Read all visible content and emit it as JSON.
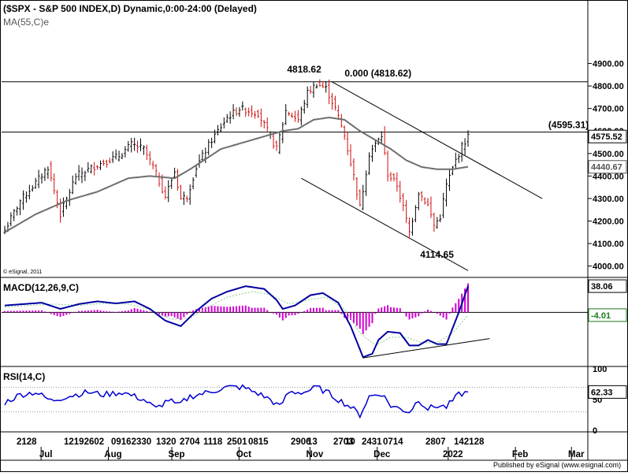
{
  "chart_data": {
    "type": "line",
    "colors": {
      "bull_bar": "#000000",
      "bear_bar": "#d01010",
      "ma": "#6e6e6e",
      "macd_line": "#0000a0",
      "signal_line": "#88cc88",
      "histogram": "#d000d0",
      "rsi": "#0000d0",
      "label_box": "#000000",
      "label_box_red": "#d01010"
    },
    "price_panel": {
      "title": "($SPX - S&P 500 INDEX,D) Dynamic,0:00-24:00 (Delayed)",
      "ma_label": "MA(55,C)e",
      "copyright": "© eSignal, 2011",
      "yticks": [
        4000,
        4100,
        4200,
        4300,
        4400,
        4500,
        4600,
        4700,
        4800,
        4900
      ],
      "ytick_labels": [
        "4000.00",
        "4100.00",
        "4200.00",
        "4300.00",
        "4400.00",
        "4500.00",
        "4600.00",
        "4700.00",
        "4800.00",
        "4900.00"
      ],
      "ylim": [
        3960,
        5000
      ],
      "hlines": [
        4818.62,
        4595.31
      ],
      "close_labels": [
        {
          "value": 4575.52,
          "text": "4575.52",
          "color": "#000000"
        },
        {
          "value": 4440.67,
          "text": "4440.67",
          "color": "#555555"
        }
      ],
      "annotations": [
        {
          "text": "4818.62",
          "x": 103,
          "y": 4818.62
        },
        {
          "text": "0.000 (4818.62)",
          "x": 108,
          "y": 4818.62
        },
        {
          "text": "(4595.31)",
          "x": 176,
          "y": 4595.31
        },
        {
          "text": "4114.65",
          "x": 135,
          "y": 4114.65
        }
      ],
      "channel_lines": [
        {
          "x1": 106,
          "y1": 4818,
          "x2": 174,
          "y2": 4300
        },
        {
          "x1": 96,
          "y1": 4390,
          "x2": 150,
          "y2": 3980
        }
      ],
      "ohlc_anchors": [
        [
          0,
          4160
        ],
        [
          5,
          4290
        ],
        [
          10,
          4370
        ],
        [
          14,
          4440
        ],
        [
          18,
          4230
        ],
        [
          23,
          4400
        ],
        [
          30,
          4450
        ],
        [
          37,
          4490
        ],
        [
          41,
          4540
        ],
        [
          45,
          4520
        ],
        [
          48,
          4440
        ],
        [
          52,
          4310
        ],
        [
          55,
          4420
        ],
        [
          57,
          4300
        ],
        [
          59,
          4310
        ],
        [
          62,
          4440
        ],
        [
          67,
          4560
        ],
        [
          72,
          4660
        ],
        [
          76,
          4700
        ],
        [
          82,
          4680
        ],
        [
          85,
          4600
        ],
        [
          88,
          4520
        ],
        [
          91,
          4690
        ],
        [
          95,
          4650
        ],
        [
          98,
          4770
        ],
        [
          101,
          4810
        ],
        [
          104,
          4790
        ],
        [
          107,
          4700
        ],
        [
          110,
          4580
        ],
        [
          113,
          4400
        ],
        [
          115,
          4260
        ],
        [
          118,
          4500
        ],
        [
          122,
          4580
        ],
        [
          124,
          4410
        ],
        [
          127,
          4360
        ],
        [
          129,
          4260
        ],
        [
          131,
          4150
        ],
        [
          134,
          4330
        ],
        [
          137,
          4270
        ],
        [
          139,
          4180
        ],
        [
          141,
          4220
        ],
        [
          143,
          4360
        ],
        [
          146,
          4470
        ],
        [
          148,
          4530
        ],
        [
          150,
          4576
        ]
      ],
      "ma55_anchors": [
        [
          0,
          4150
        ],
        [
          10,
          4230
        ],
        [
          20,
          4290
        ],
        [
          30,
          4330
        ],
        [
          40,
          4390
        ],
        [
          47,
          4400
        ],
        [
          55,
          4390
        ],
        [
          60,
          4430
        ],
        [
          70,
          4520
        ],
        [
          80,
          4560
        ],
        [
          90,
          4600
        ],
        [
          95,
          4610
        ],
        [
          100,
          4650
        ],
        [
          105,
          4660
        ],
        [
          110,
          4650
        ],
        [
          115,
          4600
        ],
        [
          120,
          4560
        ],
        [
          125,
          4520
        ],
        [
          130,
          4470
        ],
        [
          135,
          4440
        ],
        [
          140,
          4430
        ],
        [
          145,
          4430
        ],
        [
          150,
          4441
        ]
      ]
    },
    "macd_panel": {
      "label": "MACD(12,26,9,C)",
      "ylim": [
        -75,
        45
      ],
      "zero_label": "-4.01",
      "macd_value_label": "38.06",
      "macd_last": 38.06,
      "signal_last": -4.01,
      "macd_anchors": [
        [
          0,
          10
        ],
        [
          6,
          12
        ],
        [
          12,
          14
        ],
        [
          18,
          5
        ],
        [
          24,
          12
        ],
        [
          30,
          16
        ],
        [
          36,
          13
        ],
        [
          42,
          16
        ],
        [
          47,
          5
        ],
        [
          52,
          -12
        ],
        [
          57,
          -20
        ],
        [
          62,
          2
        ],
        [
          67,
          20
        ],
        [
          72,
          30
        ],
        [
          78,
          38
        ],
        [
          84,
          34
        ],
        [
          88,
          18
        ],
        [
          90,
          5
        ],
        [
          94,
          10
        ],
        [
          99,
          25
        ],
        [
          103,
          28
        ],
        [
          108,
          14
        ],
        [
          112,
          -20
        ],
        [
          116,
          -65
        ],
        [
          119,
          -60
        ],
        [
          121,
          -40
        ],
        [
          124,
          -28
        ],
        [
          128,
          -30
        ],
        [
          131,
          -48
        ],
        [
          134,
          -48
        ],
        [
          137,
          -40
        ],
        [
          140,
          -46
        ],
        [
          143,
          -46
        ],
        [
          147,
          0
        ],
        [
          150,
          38
        ]
      ],
      "signal_anchors": [
        [
          0,
          8
        ],
        [
          8,
          10
        ],
        [
          16,
          12
        ],
        [
          24,
          10
        ],
        [
          32,
          13
        ],
        [
          40,
          12
        ],
        [
          47,
          4
        ],
        [
          54,
          -10
        ],
        [
          60,
          -8
        ],
        [
          66,
          8
        ],
        [
          72,
          22
        ],
        [
          80,
          30
        ],
        [
          86,
          26
        ],
        [
          92,
          12
        ],
        [
          98,
          18
        ],
        [
          104,
          22
        ],
        [
          110,
          5
        ],
        [
          115,
          -30
        ],
        [
          120,
          -48
        ],
        [
          125,
          -36
        ],
        [
          130,
          -36
        ],
        [
          135,
          -44
        ],
        [
          140,
          -44
        ],
        [
          145,
          -30
        ],
        [
          150,
          -4
        ]
      ],
      "divergence_line": {
        "x1": 116,
        "y1": -66,
        "x2": 157,
        "y2": -38
      }
    },
    "rsi_panel": {
      "label": "RSI(14,C)",
      "ylim": [
        0,
        100
      ],
      "yticks": [
        0,
        50,
        100
      ],
      "ytick_labels": [
        "0",
        "50",
        "100"
      ],
      "dotted_levels": [
        70,
        30
      ],
      "value_label": "62.33",
      "rsi_last": 62.33,
      "rsi_anchors": [
        [
          0,
          45
        ],
        [
          5,
          58
        ],
        [
          10,
          62
        ],
        [
          15,
          48
        ],
        [
          20,
          55
        ],
        [
          27,
          62
        ],
        [
          32,
          58
        ],
        [
          38,
          62
        ],
        [
          45,
          50
        ],
        [
          49,
          35
        ],
        [
          53,
          50
        ],
        [
          56,
          40
        ],
        [
          60,
          55
        ],
        [
          66,
          62
        ],
        [
          72,
          70
        ],
        [
          77,
          70
        ],
        [
          82,
          60
        ],
        [
          86,
          50
        ],
        [
          89,
          38
        ],
        [
          92,
          62
        ],
        [
          97,
          62
        ],
        [
          101,
          70
        ],
        [
          105,
          60
        ],
        [
          108,
          50
        ],
        [
          112,
          38
        ],
        [
          115,
          25
        ],
        [
          118,
          55
        ],
        [
          122,
          60
        ],
        [
          125,
          40
        ],
        [
          128,
          35
        ],
        [
          131,
          30
        ],
        [
          134,
          50
        ],
        [
          137,
          35
        ],
        [
          140,
          40
        ],
        [
          143,
          38
        ],
        [
          147,
          58
        ],
        [
          150,
          62.33
        ]
      ]
    },
    "x_axis": {
      "n_bars": 151,
      "day_ticks": [
        {
          "text": "2128",
          "x": 5
        },
        {
          "text": "12192602",
          "x": 25
        },
        {
          "text": "09162330",
          "x": 45
        },
        {
          "text": "1320",
          "x": 64
        },
        {
          "text": "2704",
          "x": 74
        },
        {
          "text": "1118",
          "x": 84
        },
        {
          "text": "2501",
          "x": 94
        },
        {
          "text": "0815",
          "x": 103
        },
        {
          "text": "2906",
          "x": 121
        },
        {
          "text": "13",
          "x": 128
        },
        {
          "text": "2703",
          "x": 139
        },
        {
          "text": "10",
          "x": 144
        },
        {
          "text": "2431",
          "x": 151
        },
        {
          "text": "0714",
          "x": 160
        },
        {
          "text": "2807",
          "x": 178
        },
        {
          "text": "142128",
          "x": 190
        }
      ],
      "month_labels": [
        {
          "text": "Jul",
          "x": 11
        },
        {
          "text": "Aug",
          "x": 29
        },
        {
          "text": "Sep",
          "x": 46
        },
        {
          "text": "Oct",
          "x": 64
        },
        {
          "text": "Nov",
          "x": 83
        },
        {
          "text": "Dec",
          "x": 101
        },
        {
          "text": "2022",
          "x": 120
        },
        {
          "text": "Feb",
          "x": 138
        },
        {
          "text": "Mar",
          "x": 153
        }
      ]
    },
    "footer": "Published by eSignal (www.esignal.com)"
  }
}
